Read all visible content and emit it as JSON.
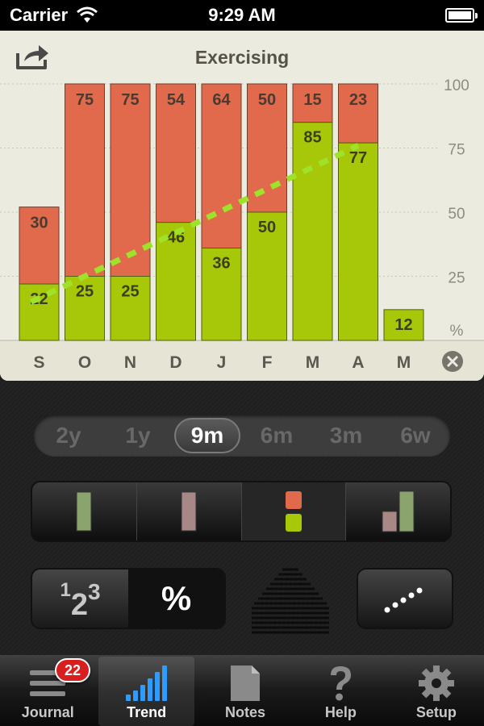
{
  "status_bar": {
    "carrier": "Carrier",
    "time": "9:29 AM"
  },
  "chart_data": {
    "type": "bar",
    "title": "Exercising",
    "categories": [
      "S",
      "O",
      "N",
      "D",
      "J",
      "F",
      "M",
      "A",
      "M"
    ],
    "series": [
      {
        "values": [
          22,
          25,
          25,
          46,
          36,
          50,
          85,
          77,
          12
        ]
      },
      {
        "values": [
          30,
          75,
          75,
          54,
          64,
          50,
          15,
          23,
          null
        ]
      }
    ],
    "yticks": [
      "100",
      "75",
      "50",
      "25",
      "%"
    ],
    "ylim": [
      0,
      100
    ],
    "trend_line": {
      "from": 15,
      "to": 76
    },
    "colors": {
      "green": "#a7c709",
      "red": "#e06a4b",
      "trend": "#9ee22a"
    }
  },
  "periods": {
    "items": [
      "2y",
      "1y",
      "9m",
      "6m",
      "3m",
      "6w"
    ],
    "selected": "9m"
  },
  "chart_types": {
    "items": [
      "green-bar-icon",
      "red-bar-icon",
      "stacked-bar-icon",
      "grouped-bar-icon"
    ],
    "selected": "stacked-bar-icon"
  },
  "number_toggle": {
    "left": {
      "d1": "1",
      "d2": "2",
      "d3": "3"
    },
    "right": "%"
  },
  "tabs": [
    {
      "label": "Journal",
      "icon": "list-icon",
      "badge": "22"
    },
    {
      "label": "Trend",
      "icon": "signal-bars-icon"
    },
    {
      "label": "Notes",
      "icon": "document-icon"
    },
    {
      "label": "Help",
      "icon": "question-icon"
    },
    {
      "label": "Setup",
      "icon": "gear-icon"
    }
  ],
  "active_tab": "Trend"
}
